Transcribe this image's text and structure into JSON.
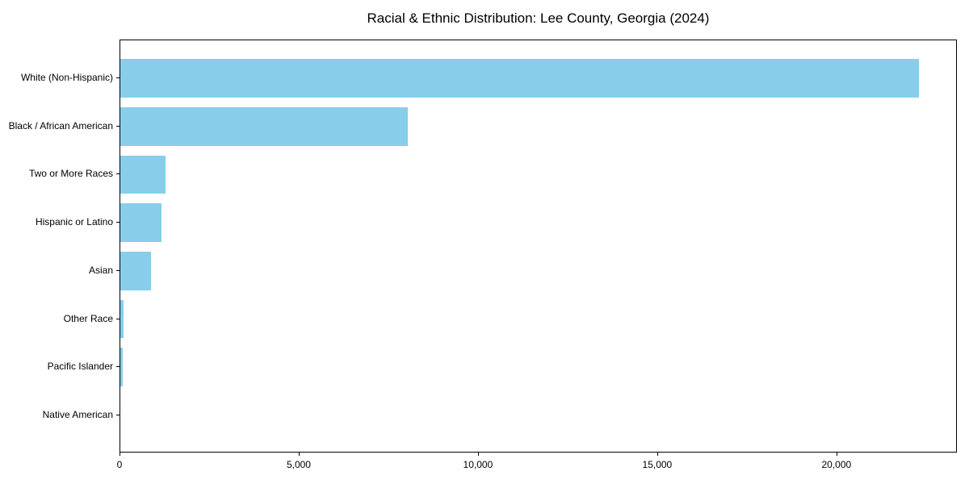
{
  "chart_data": {
    "type": "bar",
    "orientation": "horizontal",
    "title": "Racial & Ethnic Distribution: Lee County, Georgia (2024)",
    "categories": [
      "White (Non-Hispanic)",
      "Black / African American",
      "Two or More Races",
      "Hispanic or Latino",
      "Asian",
      "Other Race",
      "Pacific Islander",
      "Native American"
    ],
    "values": [
      22270,
      8010,
      1270,
      1150,
      850,
      100,
      70,
      0
    ],
    "xlabel": "",
    "ylabel": "",
    "xlim": [
      0,
      23360
    ],
    "xticks": {
      "values": [
        0,
        5000,
        10000,
        15000,
        20000
      ],
      "labels": [
        "0",
        "5,000",
        "10,000",
        "15,000",
        "20,000"
      ]
    },
    "grid": false,
    "legend": false,
    "bar_color": "#87CEEB",
    "background_color": "#ffffff",
    "spine_color": "#000000",
    "text_color": "#000000"
  }
}
